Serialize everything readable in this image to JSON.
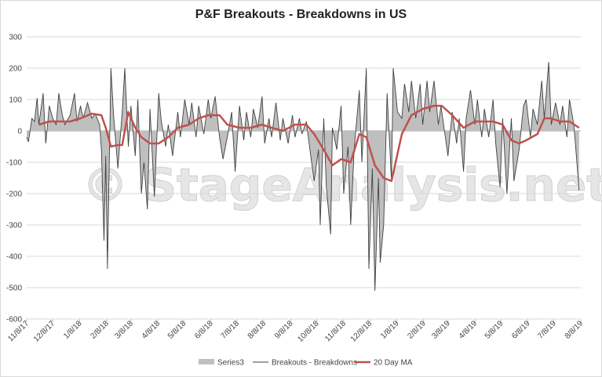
{
  "chart_data": {
    "type": "area",
    "title": "P&F Breakouts - Breakdowns in US",
    "watermark": "© StageAnalysis.net",
    "ylim": [
      -600,
      300
    ],
    "yticks": [
      300,
      200,
      100,
      0,
      -100,
      -200,
      -300,
      -400,
      -500,
      -600
    ],
    "xlim": [
      "2017-11-08",
      "2019-08-08"
    ],
    "xticks": [
      "11/8/17",
      "12/8/17",
      "1/8/18",
      "2/8/18",
      "3/8/18",
      "4/8/18",
      "5/8/18",
      "6/8/18",
      "7/8/18",
      "8/8/18",
      "9/8/18",
      "10/8/18",
      "11/8/18",
      "12/8/18",
      "1/8/19",
      "2/8/19",
      "3/8/19",
      "4/8/19",
      "5/8/19",
      "6/8/19",
      "7/8/19",
      "8/8/19"
    ],
    "grid": true,
    "legend_position": "bottom",
    "series": [
      {
        "name": "Series3",
        "kind": "area",
        "color": "#bfbfbf",
        "points": [
          [
            "2017-11-08",
            -20
          ],
          [
            "2017-11-10",
            -35
          ],
          [
            "2017-11-14",
            40
          ],
          [
            "2017-11-17",
            30
          ],
          [
            "2017-11-20",
            105
          ],
          [
            "2017-11-22",
            20
          ],
          [
            "2017-11-27",
            120
          ],
          [
            "2017-11-30",
            -40
          ],
          [
            "2017-12-04",
            80
          ],
          [
            "2017-12-08",
            40
          ],
          [
            "2017-12-12",
            20
          ],
          [
            "2017-12-15",
            120
          ],
          [
            "2017-12-19",
            50
          ],
          [
            "2017-12-22",
            20
          ],
          [
            "2017-12-28",
            50
          ],
          [
            "2018-01-02",
            120
          ],
          [
            "2018-01-05",
            30
          ],
          [
            "2018-01-09",
            80
          ],
          [
            "2018-01-12",
            40
          ],
          [
            "2018-01-17",
            90
          ],
          [
            "2018-01-22",
            40
          ],
          [
            "2018-01-26",
            55
          ],
          [
            "2018-01-31",
            20
          ],
          [
            "2018-02-02",
            -60
          ],
          [
            "2018-02-05",
            -350
          ],
          [
            "2018-02-07",
            -80
          ],
          [
            "2018-02-09",
            -440
          ],
          [
            "2018-02-13",
            200
          ],
          [
            "2018-02-16",
            50
          ],
          [
            "2018-02-21",
            -120
          ],
          [
            "2018-02-26",
            60
          ],
          [
            "2018-03-01",
            200
          ],
          [
            "2018-03-05",
            -50
          ],
          [
            "2018-03-08",
            80
          ],
          [
            "2018-03-13",
            -80
          ],
          [
            "2018-03-16",
            100
          ],
          [
            "2018-03-20",
            -200
          ],
          [
            "2018-03-23",
            -100
          ],
          [
            "2018-03-27",
            -250
          ],
          [
            "2018-03-30",
            70
          ],
          [
            "2018-04-04",
            -210
          ],
          [
            "2018-04-09",
            120
          ],
          [
            "2018-04-12",
            30
          ],
          [
            "2018-04-17",
            -50
          ],
          [
            "2018-04-20",
            20
          ],
          [
            "2018-04-25",
            -80
          ],
          [
            "2018-05-01",
            60
          ],
          [
            "2018-05-04",
            -20
          ],
          [
            "2018-05-09",
            100
          ],
          [
            "2018-05-14",
            20
          ],
          [
            "2018-05-17",
            90
          ],
          [
            "2018-05-22",
            -20
          ],
          [
            "2018-05-25",
            80
          ],
          [
            "2018-05-31",
            -10
          ],
          [
            "2018-06-05",
            100
          ],
          [
            "2018-06-08",
            40
          ],
          [
            "2018-06-13",
            110
          ],
          [
            "2018-06-18",
            -20
          ],
          [
            "2018-06-22",
            -90
          ],
          [
            "2018-06-27",
            -20
          ],
          [
            "2018-07-02",
            60
          ],
          [
            "2018-07-06",
            -130
          ],
          [
            "2018-07-11",
            80
          ],
          [
            "2018-07-16",
            -30
          ],
          [
            "2018-07-19",
            60
          ],
          [
            "2018-07-24",
            -20
          ],
          [
            "2018-07-27",
            70
          ],
          [
            "2018-08-01",
            10
          ],
          [
            "2018-08-06",
            110
          ],
          [
            "2018-08-09",
            -40
          ],
          [
            "2018-08-14",
            40
          ],
          [
            "2018-08-17",
            -20
          ],
          [
            "2018-08-22",
            90
          ],
          [
            "2018-08-27",
            -30
          ],
          [
            "2018-08-30",
            40
          ],
          [
            "2018-09-05",
            -40
          ],
          [
            "2018-09-10",
            50
          ],
          [
            "2018-09-13",
            -20
          ],
          [
            "2018-09-18",
            40
          ],
          [
            "2018-09-21",
            -10
          ],
          [
            "2018-09-26",
            30
          ],
          [
            "2018-10-01",
            -80
          ],
          [
            "2018-10-05",
            -160
          ],
          [
            "2018-10-10",
            -60
          ],
          [
            "2018-10-12",
            -300
          ],
          [
            "2018-10-16",
            40
          ],
          [
            "2018-10-19",
            -180
          ],
          [
            "2018-10-24",
            -330
          ],
          [
            "2018-10-26",
            10
          ],
          [
            "2018-10-31",
            -60
          ],
          [
            "2018-11-05",
            80
          ],
          [
            "2018-11-08",
            -200
          ],
          [
            "2018-11-13",
            -50
          ],
          [
            "2018-11-16",
            -300
          ],
          [
            "2018-11-20",
            -60
          ],
          [
            "2018-11-26",
            130
          ],
          [
            "2018-11-29",
            -100
          ],
          [
            "2018-12-04",
            200
          ],
          [
            "2018-12-07",
            -440
          ],
          [
            "2018-12-11",
            -120
          ],
          [
            "2018-12-14",
            -510
          ],
          [
            "2018-12-18",
            -150
          ],
          [
            "2018-12-20",
            -420
          ],
          [
            "2018-12-24",
            -300
          ],
          [
            "2018-12-28",
            120
          ],
          [
            "2019-01-02",
            -160
          ],
          [
            "2019-01-04",
            200
          ],
          [
            "2019-01-09",
            60
          ],
          [
            "2019-01-14",
            40
          ],
          [
            "2019-01-17",
            150
          ],
          [
            "2019-01-22",
            60
          ],
          [
            "2019-01-25",
            160
          ],
          [
            "2019-01-30",
            40
          ],
          [
            "2019-02-04",
            150
          ],
          [
            "2019-02-07",
            20
          ],
          [
            "2019-02-12",
            160
          ],
          [
            "2019-02-15",
            60
          ],
          [
            "2019-02-20",
            160
          ],
          [
            "2019-02-25",
            20
          ],
          [
            "2019-02-28",
            80
          ],
          [
            "2019-03-05",
            -20
          ],
          [
            "2019-03-08",
            -80
          ],
          [
            "2019-03-13",
            60
          ],
          [
            "2019-03-18",
            -40
          ],
          [
            "2019-03-21",
            40
          ],
          [
            "2019-03-26",
            -130
          ],
          [
            "2019-03-29",
            40
          ],
          [
            "2019-04-03",
            130
          ],
          [
            "2019-04-08",
            20
          ],
          [
            "2019-04-11",
            100
          ],
          [
            "2019-04-16",
            -20
          ],
          [
            "2019-04-19",
            70
          ],
          [
            "2019-04-24",
            -20
          ],
          [
            "2019-04-29",
            100
          ],
          [
            "2019-05-02",
            -40
          ],
          [
            "2019-05-07",
            -180
          ],
          [
            "2019-05-10",
            40
          ],
          [
            "2019-05-15",
            -200
          ],
          [
            "2019-05-20",
            40
          ],
          [
            "2019-05-23",
            -160
          ],
          [
            "2019-05-29",
            -60
          ],
          [
            "2019-06-03",
            80
          ],
          [
            "2019-06-06",
            100
          ],
          [
            "2019-06-11",
            -20
          ],
          [
            "2019-06-14",
            70
          ],
          [
            "2019-06-19",
            20
          ],
          [
            "2019-06-24",
            160
          ],
          [
            "2019-06-27",
            40
          ],
          [
            "2019-07-02",
            220
          ],
          [
            "2019-07-05",
            20
          ],
          [
            "2019-07-10",
            90
          ],
          [
            "2019-07-15",
            20
          ],
          [
            "2019-07-18",
            80
          ],
          [
            "2019-07-23",
            -20
          ],
          [
            "2019-07-26",
            100
          ],
          [
            "2019-07-31",
            20
          ],
          [
            "2019-08-02",
            -50
          ],
          [
            "2019-08-06",
            -190
          ]
        ]
      },
      {
        "name": "Breakouts - Breakdowns",
        "kind": "line",
        "color": "#404040",
        "same_as": "Series3"
      },
      {
        "name": "20 Day MA",
        "kind": "line",
        "color": "#c0504d",
        "points": [
          [
            "2017-11-22",
            20
          ],
          [
            "2017-12-04",
            30
          ],
          [
            "2017-12-15",
            30
          ],
          [
            "2017-12-28",
            30
          ],
          [
            "2018-01-09",
            40
          ],
          [
            "2018-01-22",
            55
          ],
          [
            "2018-02-02",
            50
          ],
          [
            "2018-02-07",
            10
          ],
          [
            "2018-02-13",
            -50
          ],
          [
            "2018-02-21",
            -45
          ],
          [
            "2018-02-26",
            -45
          ],
          [
            "2018-03-05",
            60
          ],
          [
            "2018-03-13",
            10
          ],
          [
            "2018-03-20",
            -20
          ],
          [
            "2018-03-30",
            -40
          ],
          [
            "2018-04-09",
            -40
          ],
          [
            "2018-04-20",
            -20
          ],
          [
            "2018-05-01",
            10
          ],
          [
            "2018-05-14",
            20
          ],
          [
            "2018-05-25",
            40
          ],
          [
            "2018-06-05",
            50
          ],
          [
            "2018-06-18",
            50
          ],
          [
            "2018-06-27",
            20
          ],
          [
            "2018-07-11",
            10
          ],
          [
            "2018-07-24",
            10
          ],
          [
            "2018-08-06",
            20
          ],
          [
            "2018-08-17",
            10
          ],
          [
            "2018-08-30",
            0
          ],
          [
            "2018-09-13",
            20
          ],
          [
            "2018-09-26",
            20
          ],
          [
            "2018-10-05",
            -10
          ],
          [
            "2018-10-16",
            -60
          ],
          [
            "2018-10-26",
            -110
          ],
          [
            "2018-11-05",
            -90
          ],
          [
            "2018-11-16",
            -100
          ],
          [
            "2018-11-26",
            -10
          ],
          [
            "2018-12-04",
            -20
          ],
          [
            "2018-12-14",
            -110
          ],
          [
            "2018-12-24",
            -150
          ],
          [
            "2019-01-02",
            -160
          ],
          [
            "2019-01-14",
            -10
          ],
          [
            "2019-01-25",
            50
          ],
          [
            "2019-02-07",
            70
          ],
          [
            "2019-02-20",
            80
          ],
          [
            "2019-03-01",
            80
          ],
          [
            "2019-03-13",
            50
          ],
          [
            "2019-03-26",
            10
          ],
          [
            "2019-04-08",
            30
          ],
          [
            "2019-04-19",
            30
          ],
          [
            "2019-04-29",
            30
          ],
          [
            "2019-05-10",
            20
          ],
          [
            "2019-05-20",
            -30
          ],
          [
            "2019-05-29",
            -40
          ],
          [
            "2019-06-06",
            -30
          ],
          [
            "2019-06-19",
            -10
          ],
          [
            "2019-06-27",
            40
          ],
          [
            "2019-07-05",
            40
          ],
          [
            "2019-07-15",
            30
          ],
          [
            "2019-07-26",
            30
          ],
          [
            "2019-08-06",
            10
          ]
        ]
      }
    ]
  }
}
